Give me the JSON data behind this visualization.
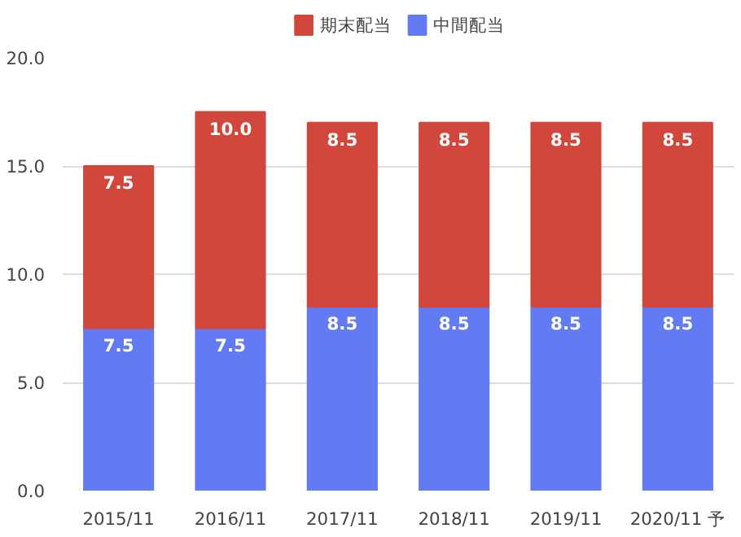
{
  "chart_data": {
    "type": "bar",
    "stacked": true,
    "categories": [
      "2015/11",
      "2016/11",
      "2017/11",
      "2018/11",
      "2019/11",
      "2020/11 予"
    ],
    "series": [
      {
        "name": "中間配当",
        "color": "#627bf2",
        "values": [
          7.5,
          7.5,
          8.5,
          8.5,
          8.5,
          8.5
        ],
        "value_labels": [
          "7.5",
          "7.5",
          "8.5",
          "8.5",
          "8.5",
          "8.5"
        ]
      },
      {
        "name": "期末配当",
        "color": "#d2473c",
        "values": [
          7.5,
          10.0,
          8.5,
          8.5,
          8.5,
          8.5
        ],
        "value_labels": [
          "7.5",
          "10.0",
          "8.5",
          "8.5",
          "8.5",
          "8.5"
        ]
      }
    ],
    "ylim": [
      0,
      20
    ],
    "yticks": [
      {
        "value": 0,
        "label": "0.0"
      },
      {
        "value": 5,
        "label": "5.0"
      },
      {
        "value": 10,
        "label": "10.0"
      },
      {
        "value": 15,
        "label": "15.0"
      },
      {
        "value": 20,
        "label": "20.0"
      }
    ],
    "grid": "y",
    "legend": "top"
  }
}
